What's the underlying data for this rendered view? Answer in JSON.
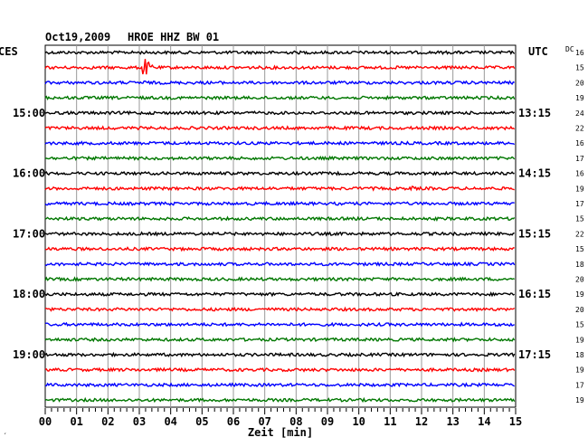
{
  "header": {
    "date": "Oct19,2009",
    "station": "HROE HHZ BW 01",
    "left_zone": "CES",
    "right_zone": "UTC",
    "dc_label": "DC"
  },
  "chart_data": {
    "type": "line",
    "title": "Oct19,2009   HROE HHZ BW 01",
    "xlabel": "Zeit [min]",
    "x_ticks": [
      "00",
      "01",
      "02",
      "03",
      "04",
      "05",
      "06",
      "07",
      "08",
      "09",
      "10",
      "11",
      "12",
      "13",
      "14",
      "15"
    ],
    "xlim": [
      0,
      15
    ],
    "grid": true,
    "trace_count": 24,
    "trace_colors": [
      "#000000",
      "#ff0000",
      "#0000ff",
      "#007700"
    ],
    "left_time_labels": [
      {
        "trace": 4,
        "label": "15:00"
      },
      {
        "trace": 8,
        "label": "16:00"
      },
      {
        "trace": 12,
        "label": "17:00"
      },
      {
        "trace": 16,
        "label": "18:00"
      },
      {
        "trace": 20,
        "label": "19:00"
      }
    ],
    "right_time_labels": [
      {
        "trace": 4,
        "label": "13:15"
      },
      {
        "trace": 8,
        "label": "14:15"
      },
      {
        "trace": 12,
        "label": "15:15"
      },
      {
        "trace": 16,
        "label": "16:15"
      },
      {
        "trace": 20,
        "label": "17:15"
      }
    ],
    "dc_values": [
      "16",
      "15",
      "20",
      "19",
      "24",
      "22",
      "16",
      "17",
      "16",
      "19",
      "17",
      "15",
      "22",
      "15",
      "18",
      "20",
      "19",
      "20",
      "15",
      "19",
      "18",
      "19",
      "17",
      "19"
    ],
    "events": [
      {
        "trace": 1,
        "minute": 3.1,
        "amplitude": 16,
        "duration": 0.9
      },
      {
        "trace": 2,
        "minute": 1.7,
        "amplitude": 3,
        "duration": 0.5
      },
      {
        "trace": 2,
        "minute": 3.1,
        "amplitude": 4,
        "duration": 0.6
      },
      {
        "trace": 9,
        "minute": 10.4,
        "amplitude": 3,
        "duration": 0.5
      },
      {
        "trace": 9,
        "minute": 11.6,
        "amplitude": 4,
        "duration": 0.9
      }
    ]
  },
  "footer": {
    "mark": "′"
  }
}
